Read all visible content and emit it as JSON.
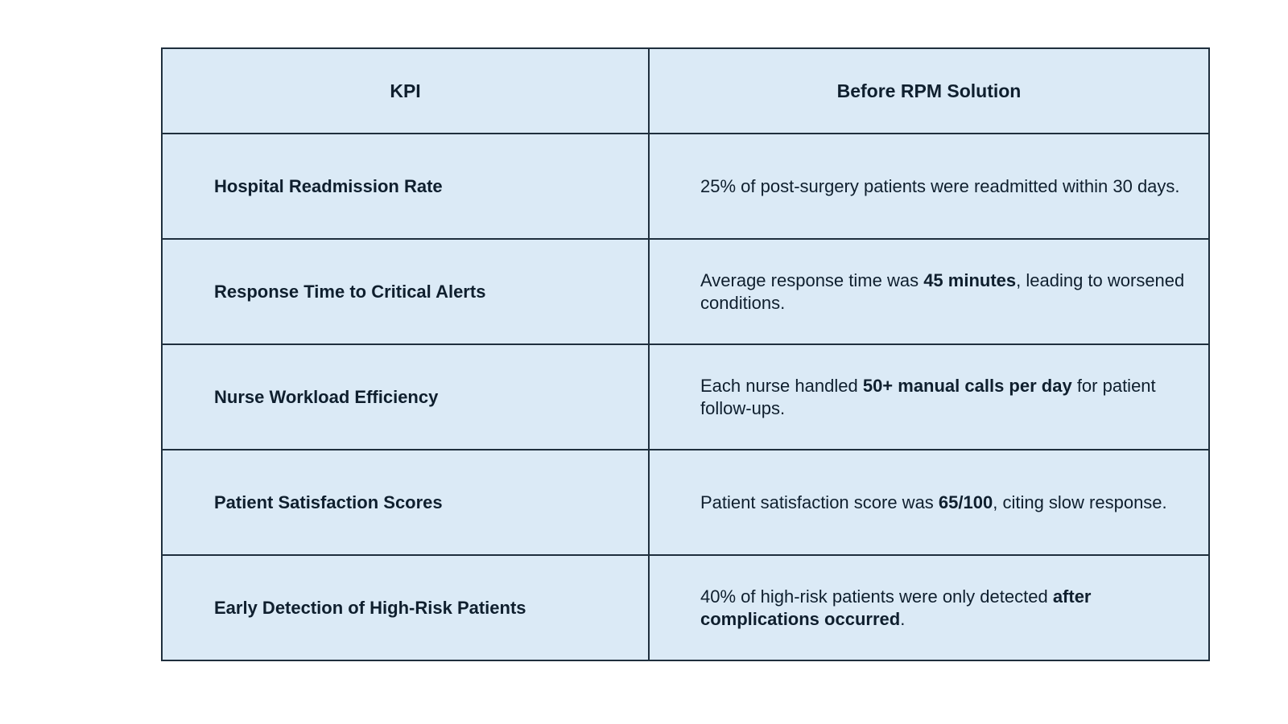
{
  "table": {
    "headers": [
      "KPI",
      "Before RPM Solution"
    ],
    "rows": [
      {
        "kpi": "Hospital Readmission Rate",
        "desc": [
          {
            "text": "25% of post-surgery patients were readmitted within 30 days.",
            "bold": false
          }
        ]
      },
      {
        "kpi": "Response Time to Critical Alerts",
        "desc": [
          {
            "text": "Average response time was ",
            "bold": false
          },
          {
            "text": "45 minutes",
            "bold": true
          },
          {
            "text": ", leading to worsened conditions.",
            "bold": false
          }
        ]
      },
      {
        "kpi": "Nurse Workload Efficiency",
        "desc": [
          {
            "text": "Each nurse handled ",
            "bold": false
          },
          {
            "text": "50+ manual calls per day",
            "bold": true
          },
          {
            "text": " for patient follow-ups.",
            "bold": false
          }
        ]
      },
      {
        "kpi": "Patient Satisfaction Scores",
        "desc": [
          {
            "text": "Patient satisfaction score was ",
            "bold": false
          },
          {
            "text": "65/100",
            "bold": true
          },
          {
            "text": ", citing slow response.",
            "bold": false
          }
        ]
      },
      {
        "kpi": "Early Detection of High-Risk Patients",
        "desc": [
          {
            "text": "40% of high-risk patients were only detected ",
            "bold": false
          },
          {
            "text": "after complications occurred",
            "bold": true
          },
          {
            "text": ".",
            "bold": false
          }
        ]
      }
    ]
  },
  "colors": {
    "cell_background": "#dbeaf6",
    "border": "#1f2f3d",
    "text": "#0f1f2e"
  }
}
